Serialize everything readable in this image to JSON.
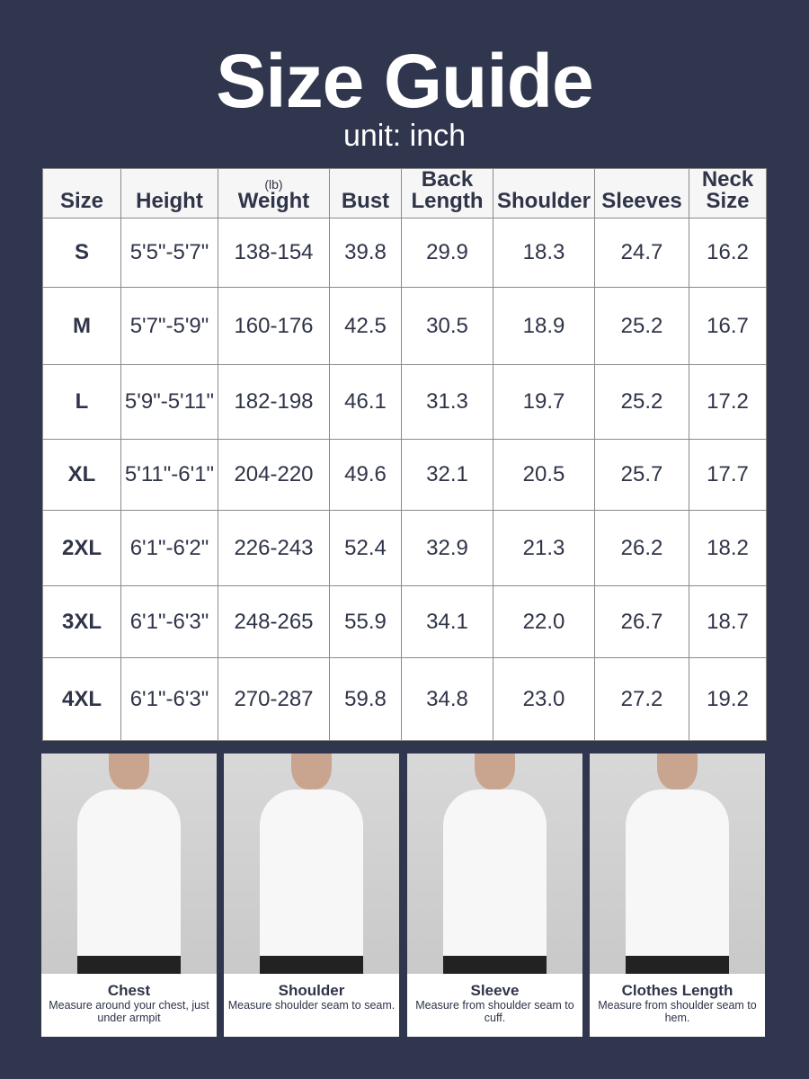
{
  "title": "Size Guide",
  "unit": "unit: inch",
  "table": {
    "headers": [
      {
        "label": "Size"
      },
      {
        "label": "Height"
      },
      {
        "label": "Weight",
        "unit": "(lb)"
      },
      {
        "label": "Bust"
      },
      {
        "label": "Back Length"
      },
      {
        "label": "Shoulder"
      },
      {
        "label": "Sleeves"
      },
      {
        "label": "Neck Size"
      }
    ],
    "rows": [
      [
        "S",
        "5'5\"-5'7\"",
        "138-154",
        "39.8",
        "29.9",
        "18.3",
        "24.7",
        "16.2"
      ],
      [
        "M",
        "5'7\"-5'9\"",
        "160-176",
        "42.5",
        "30.5",
        "18.9",
        "25.2",
        "16.7"
      ],
      [
        "L",
        "5'9\"-5'11\"",
        "182-198",
        "46.1",
        "31.3",
        "19.7",
        "25.2",
        "17.2"
      ],
      [
        "XL",
        "5'11\"-6'1\"",
        "204-220",
        "49.6",
        "32.1",
        "20.5",
        "25.7",
        "17.7"
      ],
      [
        "2XL",
        "6'1\"-6'2\"",
        "226-243",
        "52.4",
        "32.9",
        "21.3",
        "26.2",
        "18.2"
      ],
      [
        "3XL",
        "6'1\"-6'3\"",
        "248-265",
        "55.9",
        "34.1",
        "22.0",
        "26.7",
        "18.7"
      ],
      [
        "4XL",
        "6'1\"-6'3\"",
        "270-287",
        "59.8",
        "34.8",
        "23.0",
        "27.2",
        "19.2"
      ]
    ]
  },
  "measures": [
    {
      "title": "Chest",
      "desc": "Measure around your chest, just under armpit"
    },
    {
      "title": "Shoulder",
      "desc": "Measure shoulder seam to seam."
    },
    {
      "title": "Sleeve",
      "desc": "Measure from shoulder seam to cuff."
    },
    {
      "title": "Clothes Length",
      "desc": "Measure from shoulder seam to hem."
    }
  ]
}
